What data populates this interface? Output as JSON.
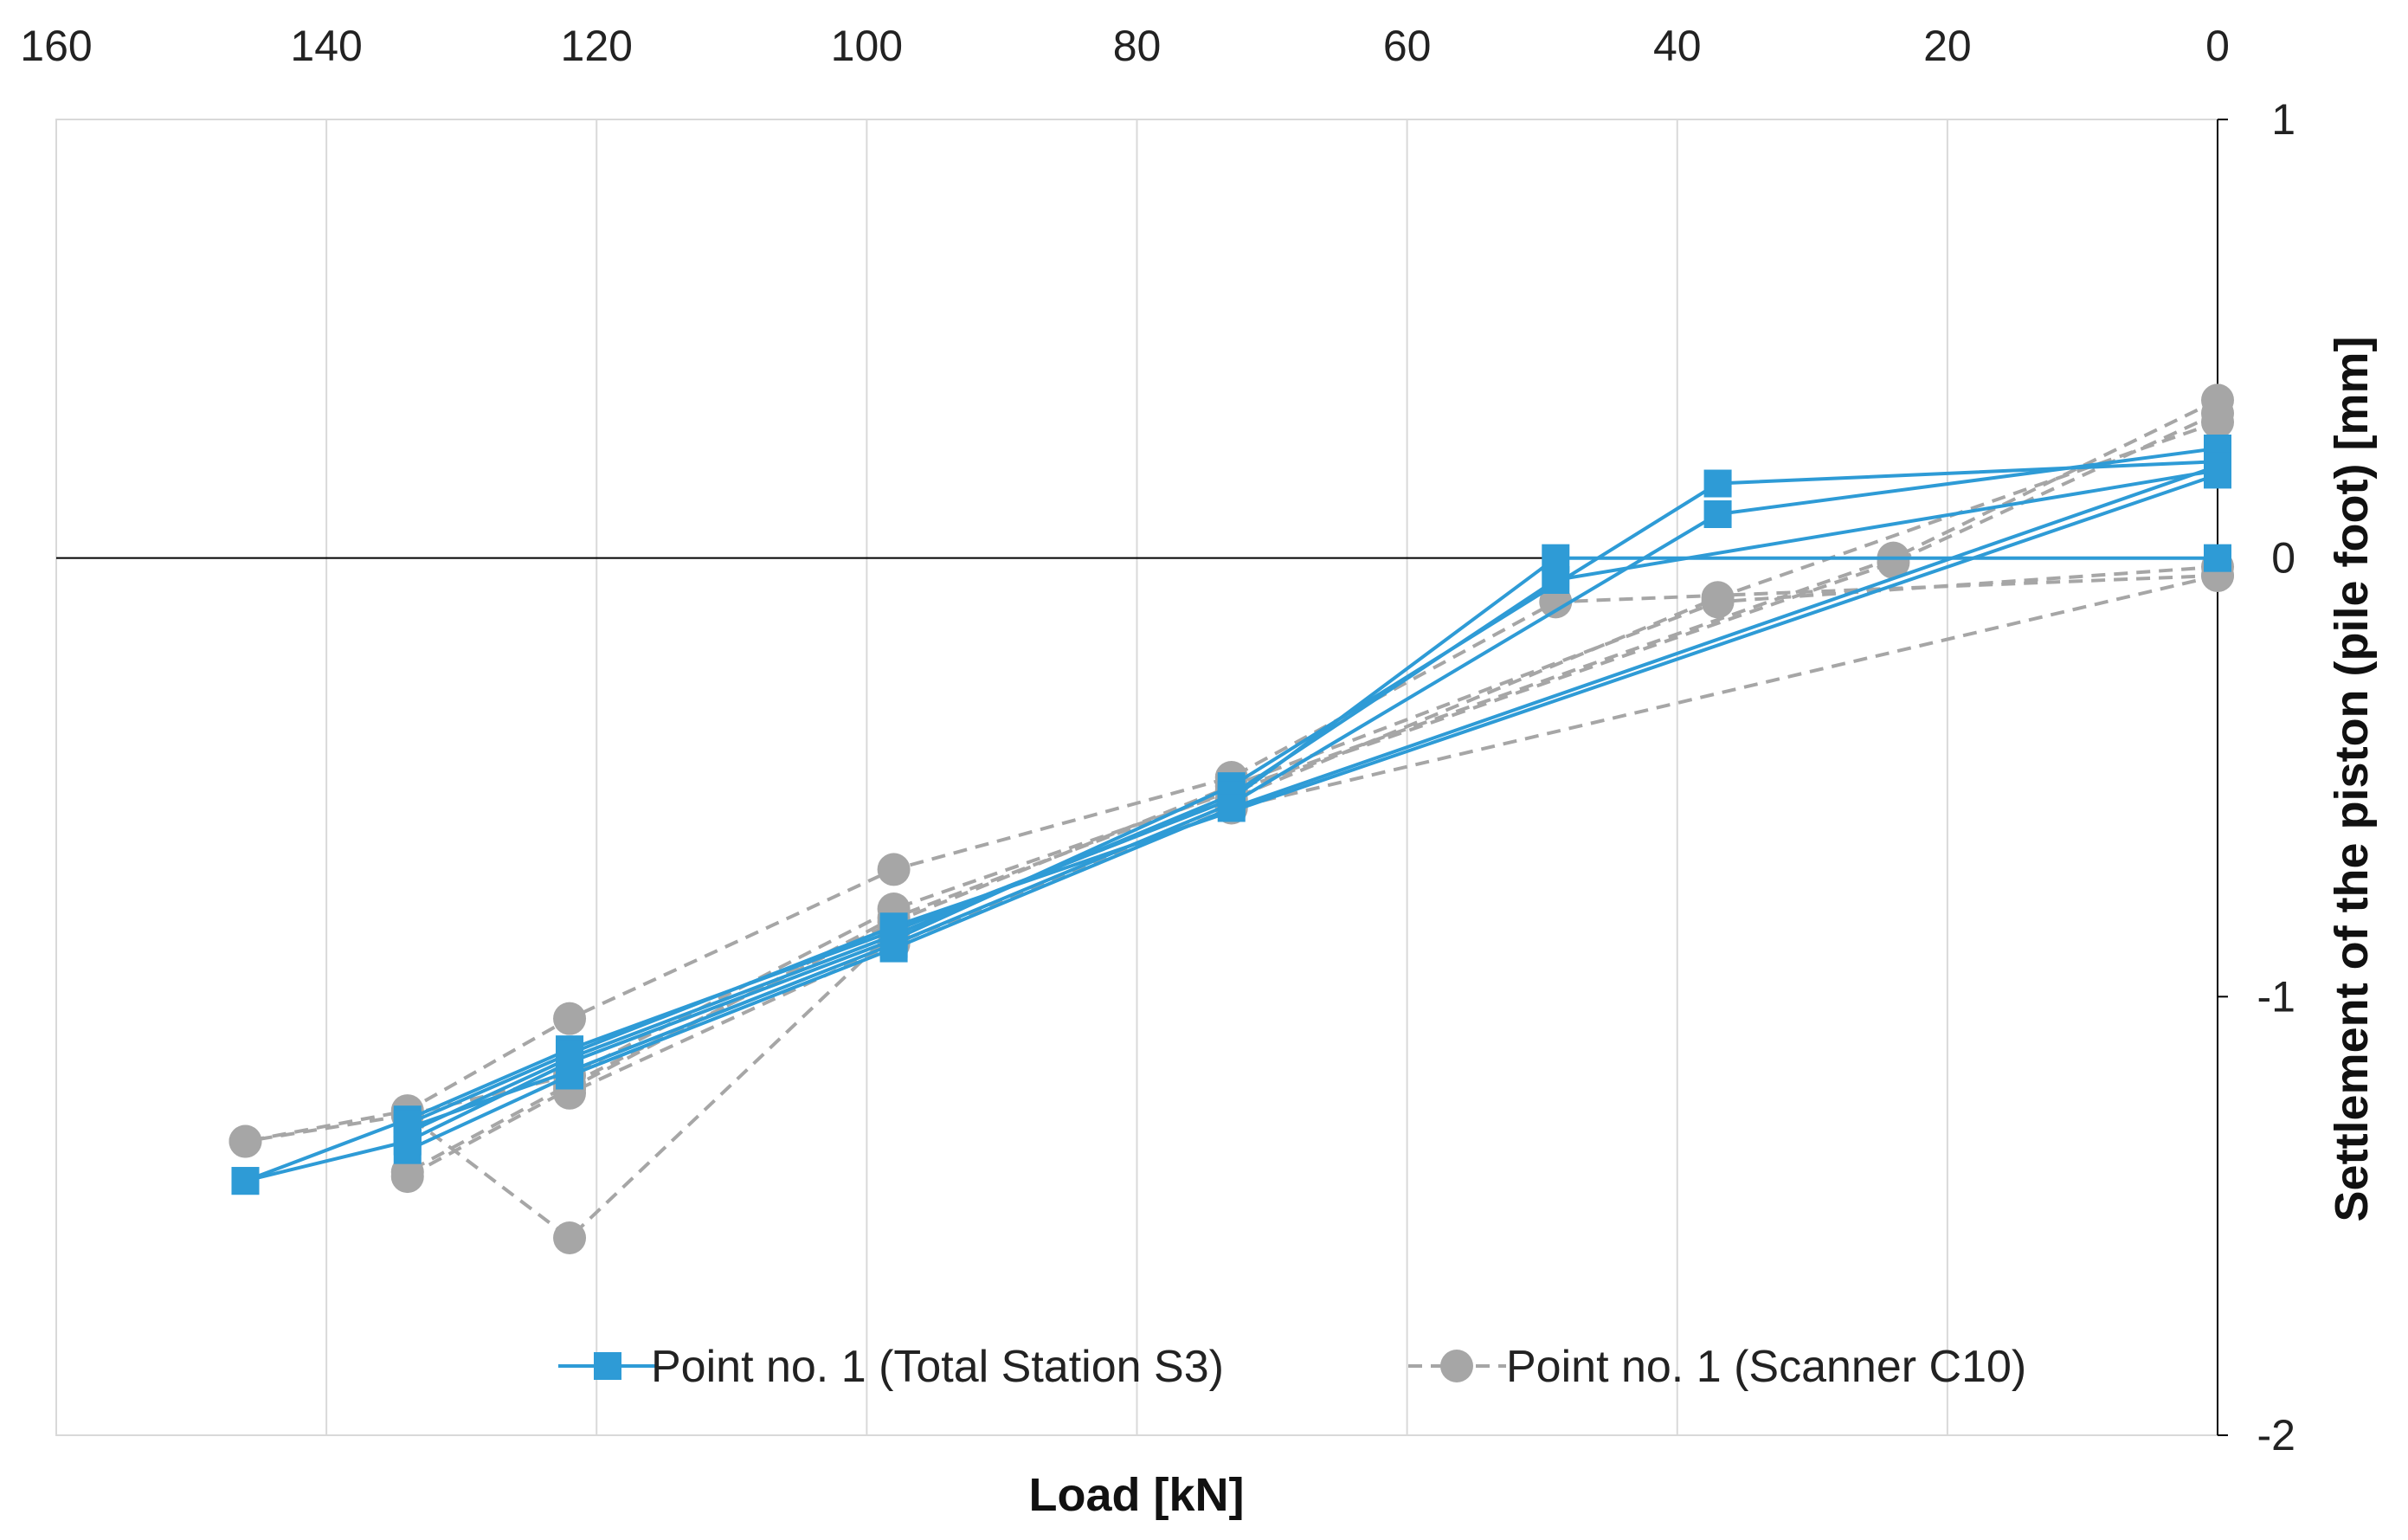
{
  "chart_data": {
    "type": "line",
    "title": "",
    "xlabel": "Load [kN]",
    "ylabel": "Settlement of the piston (pile foot) [mm]",
    "xlim": [
      160,
      0
    ],
    "ylim": [
      -2,
      1
    ],
    "x_reversed": true,
    "x_axis_position": "top",
    "y_axis_position": "right",
    "x_ticks": [
      "160",
      "140",
      "120",
      "100",
      "80",
      "60",
      "40",
      "20",
      "0"
    ],
    "y_ticks": [
      "1",
      "0",
      "-1",
      "-2"
    ],
    "grid": "vertical",
    "legend_position": "bottom-center",
    "series": [
      {
        "name": "Point no. 1 (Total Station S3)",
        "color": "#2e9bd6",
        "line_style": "solid",
        "marker": "square",
        "segments": [
          [
            [
              0,
              0.0
            ],
            [
              49,
              0.0
            ],
            [
              73,
              -0.55
            ],
            [
              98,
              -0.85
            ],
            [
              122,
              -1.12
            ],
            [
              134,
              -1.28
            ],
            [
              146,
              -1.42
            ]
          ],
          [
            [
              0,
              0.22
            ],
            [
              37,
              0.17
            ],
            [
              73,
              -0.52
            ],
            [
              98,
              -0.87
            ],
            [
              122,
              -1.15
            ],
            [
              134,
              -1.33
            ],
            [
              146,
              -1.42
            ]
          ],
          [
            [
              0,
              0.25
            ],
            [
              37,
              0.1
            ],
            [
              73,
              -0.56
            ],
            [
              98,
              -0.88
            ],
            [
              122,
              -1.17
            ],
            [
              134,
              -1.3
            ]
          ],
          [
            [
              0,
              0.2
            ],
            [
              49,
              -0.05
            ],
            [
              73,
              -0.54
            ],
            [
              98,
              -0.86
            ],
            [
              122,
              -1.14
            ],
            [
              134,
              -1.31
            ]
          ],
          [
            [
              0,
              0.21
            ],
            [
              73,
              -0.57
            ],
            [
              98,
              -0.89
            ],
            [
              122,
              -1.18
            ],
            [
              134,
              -1.35
            ]
          ],
          [
            [
              0,
              0.19
            ],
            [
              98,
              -0.84
            ],
            [
              122,
              -1.13
            ],
            [
              134,
              -1.29
            ]
          ]
        ]
      },
      {
        "name": "Point no. 1 (Scanner C10)",
        "color": "#a6a6a6",
        "line_style": "dashed",
        "marker": "circle",
        "segments": [
          [
            [
              0,
              -0.04
            ],
            [
              49,
              -0.1
            ],
            [
              73,
              -0.5
            ],
            [
              98,
              -0.71
            ],
            [
              122,
              -1.05
            ],
            [
              134,
              -1.26
            ],
            [
              146,
              -1.33
            ]
          ],
          [
            [
              0,
              0.36
            ],
            [
              24,
              0.0
            ],
            [
              73,
              -0.53
            ],
            [
              98,
              -0.82
            ],
            [
              122,
              -1.21
            ],
            [
              134,
              -1.41
            ]
          ],
          [
            [
              0,
              0.31
            ],
            [
              37,
              -0.09
            ],
            [
              73,
              -0.55
            ],
            [
              98,
              -0.85
            ],
            [
              122,
              -1.55
            ],
            [
              134,
              -1.27
            ],
            [
              146,
              -1.33
            ]
          ],
          [
            [
              0,
              -0.02
            ],
            [
              37,
              -0.1
            ],
            [
              73,
              -0.52
            ],
            [
              98,
              -0.83
            ],
            [
              122,
              -1.2
            ],
            [
              134,
              -1.4
            ]
          ],
          [
            [
              0,
              -0.04
            ],
            [
              73,
              -0.57
            ],
            [
              98,
              -0.88
            ],
            [
              122,
              -1.22
            ]
          ],
          [
            [
              0,
              0.33
            ],
            [
              24,
              -0.01
            ],
            [
              98,
              -0.8
            ],
            [
              122,
              -1.18
            ],
            [
              134,
              -1.27
            ]
          ]
        ]
      }
    ]
  }
}
